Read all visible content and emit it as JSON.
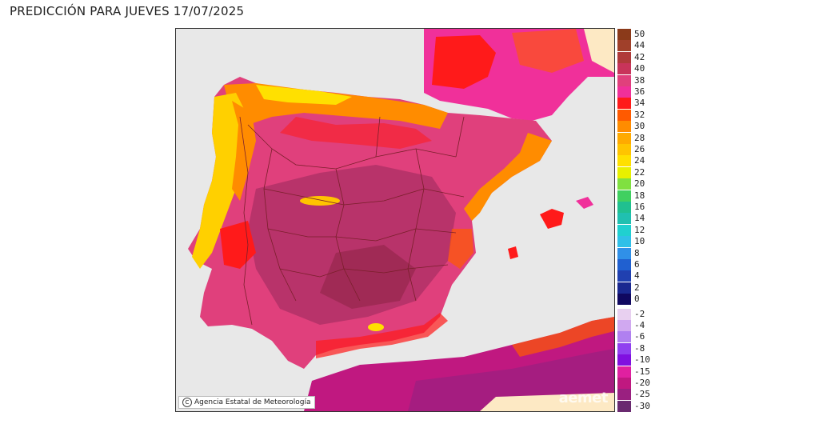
{
  "header": {
    "title": "PREDICCIÓN PARA JUEVES 17/07/2025"
  },
  "map": {
    "credit": "Agencia Estatal de Meteorología",
    "watermark": "aemet",
    "colors": {
      "sea": "#e8e8e8",
      "border": "#7a1f2a",
      "hot_core": "#b8336a",
      "very_hot": "#e81e8c",
      "hot": "#ff2a1a",
      "warm": "#ff8a00",
      "mild": "#ffd000"
    }
  },
  "legend": {
    "positive": [
      {
        "label": "50",
        "color": "#8b3a1a"
      },
      {
        "label": "44",
        "color": "#a0402a"
      },
      {
        "label": "42",
        "color": "#b03a3a"
      },
      {
        "label": "40",
        "color": "#c8345a"
      },
      {
        "label": "38",
        "color": "#e0407c"
      },
      {
        "label": "36",
        "color": "#f0309a"
      },
      {
        "label": "34",
        "color": "#ff1a1a"
      },
      {
        "label": "32",
        "color": "#ff5a00"
      },
      {
        "label": "30",
        "color": "#ff8c00"
      },
      {
        "label": "28",
        "color": "#ffaa00"
      },
      {
        "label": "26",
        "color": "#ffc400"
      },
      {
        "label": "24",
        "color": "#ffe000"
      },
      {
        "label": "22",
        "color": "#e8f000"
      },
      {
        "label": "20",
        "color": "#80e040"
      },
      {
        "label": "18",
        "color": "#40d060"
      },
      {
        "label": "16",
        "color": "#20c090"
      },
      {
        "label": "14",
        "color": "#20c0b0"
      },
      {
        "label": "12",
        "color": "#20d0d0"
      },
      {
        "label": "10",
        "color": "#30c0e8"
      },
      {
        "label": "8",
        "color": "#3090e8"
      },
      {
        "label": "6",
        "color": "#2060d0"
      },
      {
        "label": "4",
        "color": "#2040b0"
      },
      {
        "label": "2",
        "color": "#1a2890"
      },
      {
        "label": "0",
        "color": "#100860"
      }
    ],
    "negative": [
      {
        "label": "-2",
        "color": "#e8d0f0"
      },
      {
        "label": "-4",
        "color": "#d0a8f0"
      },
      {
        "label": "-6",
        "color": "#b080f0"
      },
      {
        "label": "-8",
        "color": "#9040f0"
      },
      {
        "label": "-10",
        "color": "#8010e0"
      },
      {
        "label": "-15",
        "color": "#e020a0"
      },
      {
        "label": "-20",
        "color": "#c01880"
      },
      {
        "label": "-25",
        "color": "#9a2080"
      },
      {
        "label": "-30",
        "color": "#6a2a70"
      }
    ]
  }
}
